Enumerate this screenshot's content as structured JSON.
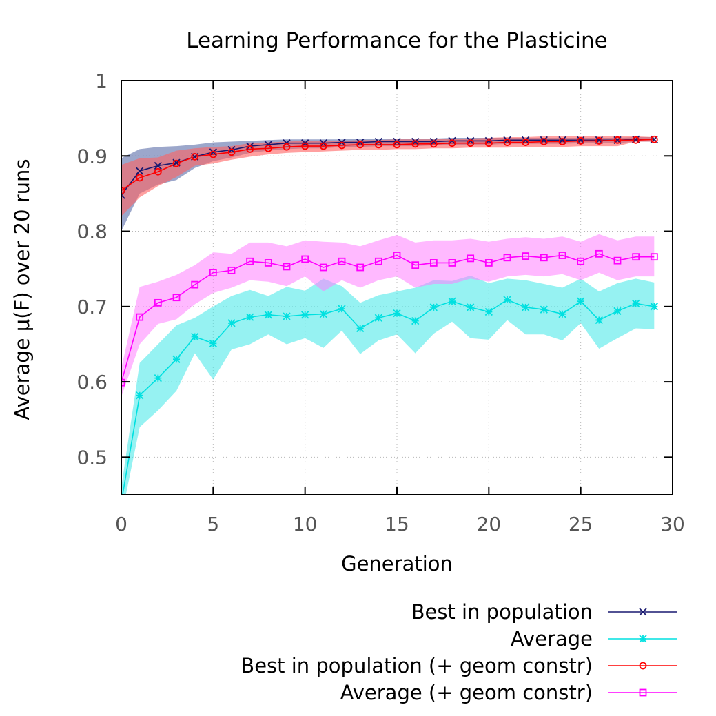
{
  "chart_data": {
    "type": "line",
    "title": "Learning Performance for the Plasticine",
    "xlabel": "Generation",
    "ylabel": "Average μ(F) over 20 runs",
    "xlim": [
      0,
      30
    ],
    "ylim": [
      0.45,
      1.0
    ],
    "x_ticks": [
      0,
      5,
      10,
      15,
      20,
      25,
      30
    ],
    "x_tick_labels": [
      "0",
      "5",
      "10",
      "15",
      "20",
      "25",
      "30"
    ],
    "y_ticks": [
      0.5,
      0.6,
      0.7,
      0.8,
      0.9,
      1.0
    ],
    "y_tick_labels": [
      "0.5",
      "0.6",
      "0.7",
      "0.8",
      "0.9",
      "1"
    ],
    "grid": true,
    "legend_position": "bottom-right, below plot",
    "x": [
      0,
      1,
      2,
      3,
      4,
      5,
      6,
      7,
      8,
      9,
      10,
      11,
      12,
      13,
      14,
      15,
      16,
      17,
      18,
      19,
      20,
      21,
      22,
      23,
      24,
      25,
      26,
      27,
      28,
      29
    ],
    "series": [
      {
        "name": "Best in population",
        "color": "#191970",
        "band_color": "#4b5ea0",
        "marker": "x",
        "values": [
          0.848,
          0.88,
          0.887,
          0.891,
          0.899,
          0.905,
          0.908,
          0.913,
          0.915,
          0.917,
          0.917,
          0.917,
          0.918,
          0.918,
          0.919,
          0.919,
          0.919,
          0.919,
          0.92,
          0.92,
          0.92,
          0.921,
          0.921,
          0.921,
          0.921,
          0.921,
          0.921,
          0.921,
          0.922,
          0.922
        ],
        "lower": [
          0.8,
          0.85,
          0.862,
          0.868,
          0.884,
          0.893,
          0.898,
          0.904,
          0.907,
          0.909,
          0.91,
          0.91,
          0.912,
          0.912,
          0.913,
          0.913,
          0.913,
          0.914,
          0.914,
          0.915,
          0.915,
          0.916,
          0.916,
          0.916,
          0.916,
          0.917,
          0.917,
          0.917,
          0.919,
          0.919
        ],
        "upper": [
          0.897,
          0.909,
          0.912,
          0.913,
          0.915,
          0.918,
          0.919,
          0.92,
          0.921,
          0.922,
          0.922,
          0.922,
          0.922,
          0.923,
          0.923,
          0.923,
          0.923,
          0.923,
          0.924,
          0.924,
          0.924,
          0.924,
          0.924,
          0.924,
          0.924,
          0.924,
          0.924,
          0.924,
          0.925,
          0.925
        ]
      },
      {
        "name": "Average",
        "color": "#00e0e0",
        "band_color": "#40e8e8",
        "marker": "star",
        "values": [
          0.44,
          0.582,
          0.605,
          0.63,
          0.66,
          0.651,
          0.678,
          0.686,
          0.689,
          0.687,
          0.689,
          0.69,
          0.697,
          0.671,
          0.685,
          0.691,
          0.681,
          0.699,
          0.707,
          0.699,
          0.693,
          0.709,
          0.699,
          0.696,
          0.69,
          0.707,
          0.682,
          0.694,
          0.704,
          0.7
        ],
        "lower": [
          0.42,
          0.54,
          0.562,
          0.588,
          0.638,
          0.603,
          0.643,
          0.65,
          0.663,
          0.65,
          0.658,
          0.645,
          0.668,
          0.637,
          0.655,
          0.663,
          0.638,
          0.664,
          0.68,
          0.658,
          0.656,
          0.682,
          0.663,
          0.663,
          0.655,
          0.678,
          0.644,
          0.658,
          0.671,
          0.67
        ],
        "upper": [
          0.46,
          0.625,
          0.65,
          0.675,
          0.685,
          0.7,
          0.714,
          0.722,
          0.714,
          0.726,
          0.721,
          0.737,
          0.727,
          0.705,
          0.715,
          0.72,
          0.725,
          0.735,
          0.734,
          0.741,
          0.731,
          0.737,
          0.735,
          0.73,
          0.725,
          0.737,
          0.72,
          0.731,
          0.737,
          0.732
        ]
      },
      {
        "name": "Best in population (+ geom constr)",
        "color": "#ff0000",
        "band_color": "#ff6060",
        "marker": "circle",
        "values": [
          0.854,
          0.871,
          0.879,
          0.89,
          0.899,
          0.902,
          0.905,
          0.909,
          0.91,
          0.912,
          0.913,
          0.913,
          0.914,
          0.915,
          0.915,
          0.915,
          0.916,
          0.916,
          0.917,
          0.917,
          0.917,
          0.918,
          0.918,
          0.919,
          0.919,
          0.92,
          0.92,
          0.921,
          0.921,
          0.922
        ],
        "lower": [
          0.82,
          0.845,
          0.86,
          0.872,
          0.887,
          0.89,
          0.895,
          0.899,
          0.902,
          0.904,
          0.905,
          0.906,
          0.907,
          0.908,
          0.908,
          0.909,
          0.909,
          0.91,
          0.91,
          0.911,
          0.911,
          0.911,
          0.912,
          0.912,
          0.912,
          0.913,
          0.913,
          0.913,
          0.919,
          0.919
        ],
        "upper": [
          0.888,
          0.897,
          0.898,
          0.907,
          0.91,
          0.912,
          0.913,
          0.917,
          0.918,
          0.919,
          0.92,
          0.92,
          0.92,
          0.921,
          0.921,
          0.922,
          0.922,
          0.922,
          0.923,
          0.923,
          0.924,
          0.925,
          0.925,
          0.926,
          0.926,
          0.926,
          0.926,
          0.926,
          0.926,
          0.925
        ]
      },
      {
        "name": "Average (+ geom constr)",
        "color": "#ff00ff",
        "band_color": "#ff80ff",
        "marker": "square",
        "values": [
          0.599,
          0.686,
          0.705,
          0.712,
          0.729,
          0.745,
          0.748,
          0.76,
          0.758,
          0.753,
          0.763,
          0.752,
          0.76,
          0.752,
          0.76,
          0.768,
          0.755,
          0.758,
          0.758,
          0.764,
          0.758,
          0.765,
          0.767,
          0.765,
          0.768,
          0.76,
          0.77,
          0.761,
          0.766,
          0.766
        ],
        "lower": [
          0.58,
          0.65,
          0.677,
          0.683,
          0.703,
          0.718,
          0.725,
          0.735,
          0.733,
          0.727,
          0.74,
          0.72,
          0.735,
          0.725,
          0.735,
          0.74,
          0.725,
          0.73,
          0.73,
          0.737,
          0.733,
          0.74,
          0.742,
          0.74,
          0.743,
          0.735,
          0.745,
          0.735,
          0.74,
          0.74
        ],
        "upper": [
          0.618,
          0.726,
          0.733,
          0.742,
          0.755,
          0.772,
          0.77,
          0.785,
          0.785,
          0.78,
          0.788,
          0.786,
          0.785,
          0.78,
          0.788,
          0.795,
          0.785,
          0.788,
          0.788,
          0.79,
          0.786,
          0.79,
          0.792,
          0.79,
          0.793,
          0.786,
          0.796,
          0.788,
          0.793,
          0.793
        ]
      }
    ]
  }
}
